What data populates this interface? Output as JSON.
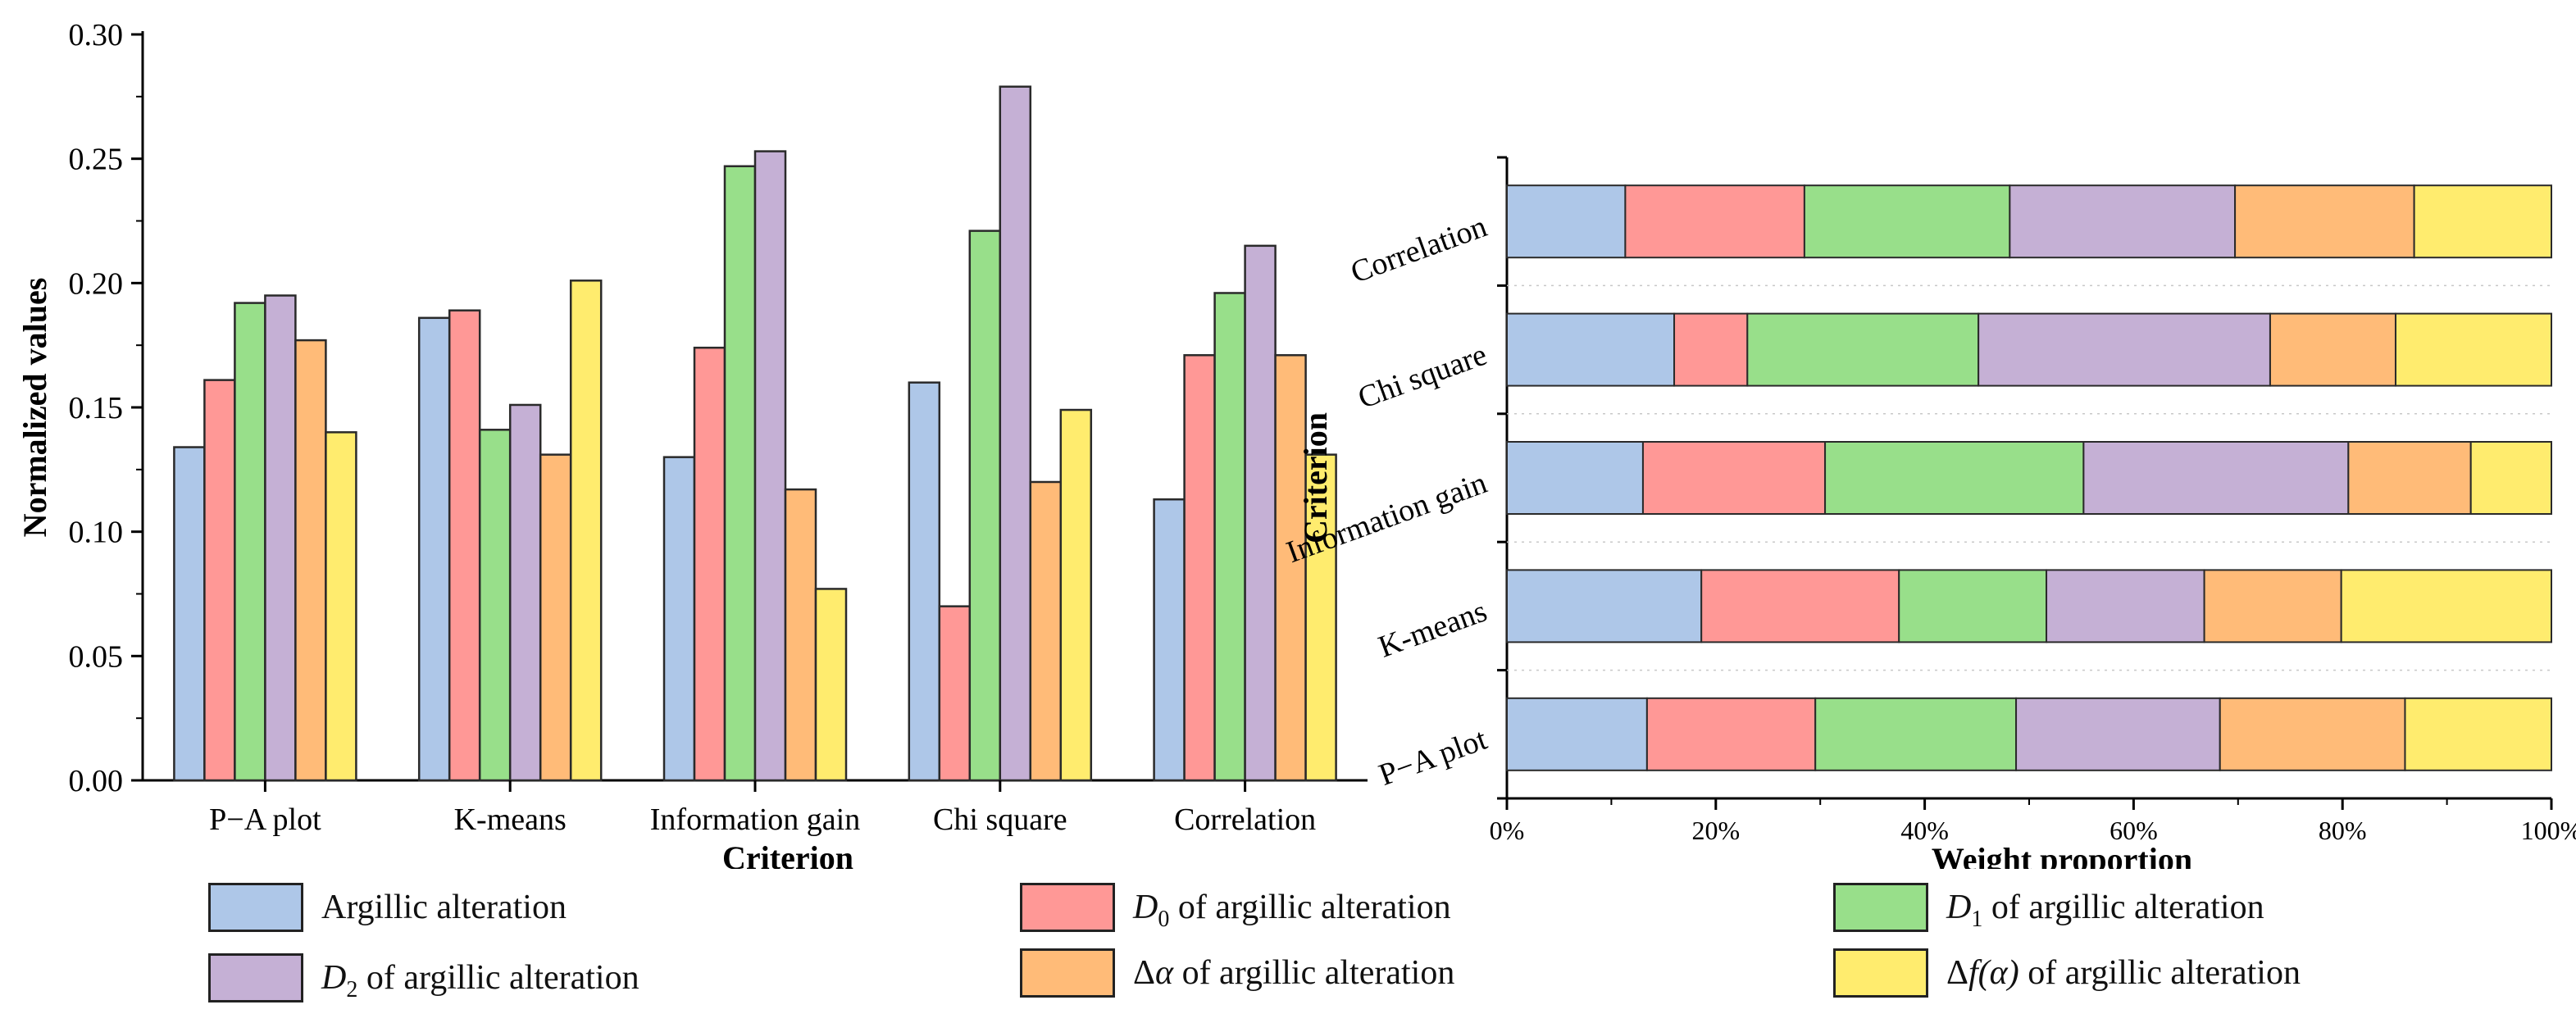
{
  "colors": {
    "series": [
      "#aec7e8",
      "#ff9896",
      "#98df8a",
      "#c5b0d5",
      "#ffbb78",
      "#ffec6e"
    ],
    "edge": "#2a2a2a"
  },
  "legend": [
    {
      "plain": "Argillic alteration",
      "italic": "",
      "sub": "",
      "suffix": ""
    },
    {
      "plain": "",
      "italic": "D",
      "sub": "0",
      "suffix": " of argillic alteration"
    },
    {
      "plain": "",
      "italic": "D",
      "sub": "1",
      "suffix": " of argillic alteration"
    },
    {
      "plain": "",
      "italic": "D",
      "sub": "2",
      "suffix": " of argillic alteration"
    },
    {
      "plain": "Δ",
      "italic": "α",
      "sub": "",
      "suffix": " of argillic alteration"
    },
    {
      "plain": "Δ",
      "italic": "f(α)",
      "sub": "",
      "suffix": " of argillic alteration"
    }
  ],
  "chart_data": [
    {
      "type": "bar",
      "title": "",
      "xlabel": "Criterion",
      "ylabel": "Normalized values",
      "ylim": [
        0,
        0.3
      ],
      "yticks": [
        "0.00",
        "0.05",
        "0.10",
        "0.15",
        "0.20",
        "0.25",
        "0.30"
      ],
      "categories": [
        "P−A plot",
        "K-means",
        "Information gain",
        "Chi square",
        "Correlation"
      ],
      "series": [
        {
          "name": "Argillic alteration",
          "values": [
            0.134,
            0.186,
            0.13,
            0.16,
            0.113
          ]
        },
        {
          "name": "D0 of argillic alteration",
          "values": [
            0.161,
            0.189,
            0.174,
            0.07,
            0.171
          ]
        },
        {
          "name": "D1 of argillic alteration",
          "values": [
            0.192,
            0.141,
            0.247,
            0.221,
            0.196
          ]
        },
        {
          "name": "D2 of argillic alteration",
          "values": [
            0.195,
            0.151,
            0.253,
            0.279,
            0.215
          ]
        },
        {
          "name": "Δα of argillic alteration",
          "values": [
            0.177,
            0.131,
            0.117,
            0.12,
            0.171
          ]
        },
        {
          "name": "Δf(α) of argillic alteration",
          "values": [
            0.14,
            0.201,
            0.077,
            0.149,
            0.131
          ]
        }
      ]
    },
    {
      "type": "bar",
      "orientation": "horizontal",
      "stacked": "percent",
      "title": "",
      "xlabel": "Weight proportion",
      "ylabel": "Criterion",
      "xlim": [
        0,
        100
      ],
      "xticks": [
        "0%",
        "20%",
        "40%",
        "60%",
        "80%",
        "100%"
      ],
      "categories": [
        "P−A plot",
        "K-means",
        "Information gain",
        "Chi square",
        "Correlation"
      ],
      "series": [
        {
          "name": "Argillic alteration",
          "values": [
            13.4,
            18.6,
            13.0,
            16.0,
            11.3
          ]
        },
        {
          "name": "D0 of argillic alteration",
          "values": [
            16.1,
            18.9,
            17.4,
            7.0,
            17.1
          ]
        },
        {
          "name": "D1 of argillic alteration",
          "values": [
            19.2,
            14.1,
            24.7,
            22.1,
            19.6
          ]
        },
        {
          "name": "D2 of argillic alteration",
          "values": [
            19.5,
            15.1,
            25.3,
            27.9,
            21.5
          ]
        },
        {
          "name": "Δα of argillic alteration",
          "values": [
            17.7,
            13.1,
            11.7,
            12.0,
            17.1
          ]
        },
        {
          "name": "Δf(α) of argillic alteration",
          "values": [
            14.0,
            20.1,
            7.7,
            14.9,
            13.1
          ]
        }
      ]
    }
  ]
}
